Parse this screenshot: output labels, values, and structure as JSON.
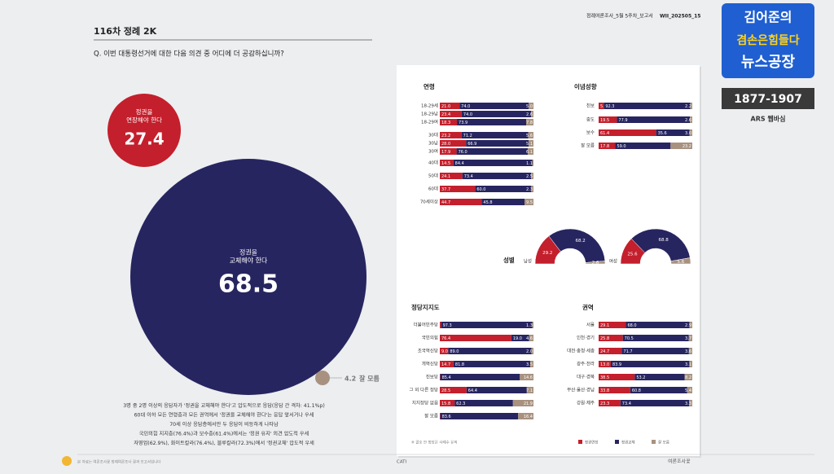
{
  "header": {
    "report": "정례여론조사_5월 5주차_보고서",
    "code": "WII_202505_15"
  },
  "section_title": "116차 정례 2K",
  "question": "Q. 이번 대통령선거에 대한 다음 의견 중 어디에 더 공감하십니까?",
  "bubbles": [
    {
      "label": [
        "정권을",
        "연장해야 한다"
      ],
      "value": 27.4,
      "color": "#c41f2c"
    },
    {
      "label": [
        "정권을",
        "교체해야 한다"
      ],
      "value": 68.5,
      "color": "#272560"
    },
    {
      "label": [
        "잘 모름"
      ],
      "value": 4.2,
      "color": "#a8927f"
    }
  ],
  "summary": [
    "3명 중 2명 이상의 응답자가 '정권을 교체해야 한다'고 압도적으로 응답(응답 간 격차: 41.1%p)",
    "60대 이하 모든 연령층과 모든 권역에서 '정권을 교체해야 한다'는 응답 앞서거나 우세",
    "70세 이상 응답층에서만 두 응답이 비등하게 나타남",
    "국민의힘 지지층(76.4%)과 보수층(61.4%)에서는 '정권 유지' 의견 압도적 우세",
    "자영업(62.9%), 화이트칼라(76.4%), 블루칼라(72.3%)에서 '정권교체' 압도적 우세"
  ],
  "colors": [
    "#c41f2c",
    "#272560",
    "#a8927f"
  ],
  "panels": {
    "age": {
      "title": "연령",
      "rows": [
        {
          "label": "18-29세",
          "values": [
            21.0,
            74.0,
            5.0
          ],
          "value_labels": [
            "21.0",
            "74.0",
            "5.0"
          ]
        },
        {
          "label": "18-29남",
          "values": [
            23.4,
            74.0,
            2.6
          ],
          "value_labels": [
            "23.4",
            "74.0",
            "2.6"
          ]
        },
        {
          "label": "18-29여",
          "values": [
            18.3,
            73.9,
            7.8
          ]
        },
        {
          "label": "30대",
          "values": [
            23.2,
            71.2,
            5.6
          ]
        },
        {
          "label": "30남",
          "values": [
            28.0,
            66.9,
            5.1
          ],
          "value_labels": [
            "28.0",
            "66.9",
            "5.1"
          ]
        },
        {
          "label": "30여",
          "values": [
            17.9,
            76.0,
            6.1
          ],
          "value_labels": [
            "17.9",
            "76.0",
            "6.1"
          ]
        },
        {
          "label": "40대",
          "values": [
            14.5,
            84.4,
            1.1
          ]
        },
        {
          "label": "50대",
          "values": [
            24.1,
            73.4,
            2.5
          ]
        },
        {
          "label": "60대",
          "values": [
            37.7,
            60.0,
            2.3
          ],
          "value_labels": [
            "37.7",
            "60.0",
            "2.3"
          ]
        },
        {
          "label": "70세이상",
          "values": [
            44.7,
            45.8,
            9.5
          ]
        }
      ]
    },
    "ideology": {
      "title": "이념성향",
      "rows": [
        {
          "label": "진보",
          "values": [
            5.5,
            92.3,
            2.2
          ]
        },
        {
          "label": "중도",
          "values": [
            19.5,
            77.9,
            2.6
          ]
        },
        {
          "label": "보수",
          "values": [
            61.4,
            35.6,
            3.0
          ],
          "value_labels": [
            "61.4",
            "35.6",
            "3.0"
          ]
        },
        {
          "label": "잘 모름",
          "values": [
            17.8,
            59.0,
            23.2
          ],
          "value_labels": [
            "17.8",
            "59.0",
            "23.2"
          ]
        }
      ]
    },
    "party": {
      "title": "정당지지도",
      "rows": [
        {
          "label": "더불어민주당",
          "values": [
            1.4,
            97.3,
            1.3
          ]
        },
        {
          "label": "국민의힘",
          "values": [
            76.4,
            19.0,
            4.6
          ],
          "value_labels": [
            "76.4",
            "19.0",
            "4.6"
          ]
        },
        {
          "label": "조국혁신당",
          "values": [
            9.0,
            89.0,
            2.0
          ],
          "value_labels": [
            "9.0",
            "89.0",
            "2.0"
          ]
        },
        {
          "label": "개혁신당",
          "values": [
            14.7,
            81.8,
            3.5
          ]
        },
        {
          "label": "진보당",
          "values": [
            0.5,
            85.4,
            14.6
          ]
        },
        {
          "label": "그 외 다른 정당",
          "values": [
            28.5,
            64.4,
            7.1
          ]
        },
        {
          "label": "지지정당 없음",
          "values": [
            15.8,
            62.3,
            21.9
          ]
        },
        {
          "label": "잘 모름",
          "values": [
            0.5,
            83.6,
            16.4
          ]
        }
      ]
    },
    "region": {
      "title": "권역",
      "rows": [
        {
          "label": "서울",
          "values": [
            29.1,
            68.0,
            2.9
          ],
          "value_labels": [
            "29.1",
            "68.0",
            "2.9"
          ]
        },
        {
          "label": "인천·경기",
          "values": [
            25.8,
            70.5,
            3.7
          ]
        },
        {
          "label": "대전·충청·세종",
          "values": [
            24.7,
            71.7,
            3.6
          ]
        },
        {
          "label": "광주·전라",
          "values": [
            13.0,
            83.9,
            3.1
          ],
          "value_labels": [
            "13.0",
            "83.9",
            "3.1"
          ]
        },
        {
          "label": "대구·경북",
          "values": [
            38.5,
            53.2,
            8.2
          ]
        },
        {
          "label": "부산·울산·경남",
          "values": [
            33.8,
            60.8,
            5.4
          ]
        },
        {
          "label": "강원·제주",
          "values": [
            23.3,
            73.4,
            3.3
          ]
        }
      ]
    }
  },
  "gender": {
    "title": "성별",
    "items": [
      {
        "label": "남성",
        "values": [
          29.2,
          68.2,
          2.6
        ]
      },
      {
        "label": "여성",
        "values": [
          25.6,
          68.8,
          5.6
        ]
      }
    ]
  },
  "legend": [
    "정권연장",
    "정권교체",
    "잘 모름"
  ],
  "footnote": "※ 괄호 안 정당은 사례수 유의",
  "footer": {
    "left": "본 자료는 여론조사꽃 정례여론조사 결과 보고서입니다",
    "center": "CATI",
    "right": "여론조사꽃"
  },
  "logo": {
    "line1": "김어준의",
    "line2": "겸손은힘들다",
    "line3": "뉴스공장",
    "phone": "1877-1907",
    "sub": "ARS 웹바심"
  }
}
